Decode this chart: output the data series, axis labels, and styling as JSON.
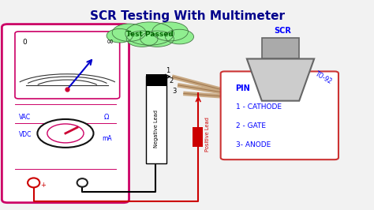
{
  "title": "SCR Testing With Multimeter",
  "title_color": "#00008B",
  "title_fontsize": 11,
  "bg_color": "#f2f2f2",
  "multimeter_box_color": "#cc0066",
  "multimeter_label_vac": "VAC",
  "multimeter_label_vdc": "VDC",
  "multimeter_label_ma": "mA",
  "multimeter_label_ohm": "Ω",
  "meter_scale_0": "0",
  "meter_scale_inf": "∞",
  "neg_lead_text": "Negative Lead",
  "pos_lead_text": "Positive Lead",
  "pin_box_color": "#cc3333",
  "pin_title": "PIN",
  "pin_1": "1 - CATHODE",
  "pin_2": "2 - GATE",
  "pin_3": "3- ANODE",
  "scr_label": "SCR",
  "to92_label": "TO-92",
  "test_passed_text": "Test Passed",
  "test_cloud_color": "#90EE90",
  "wire_color_black": "#000000",
  "wire_color_red": "#cc0000",
  "needle_color": "#0000cc",
  "knob_color": "#cc0033",
  "leg_color": "#c8a882"
}
